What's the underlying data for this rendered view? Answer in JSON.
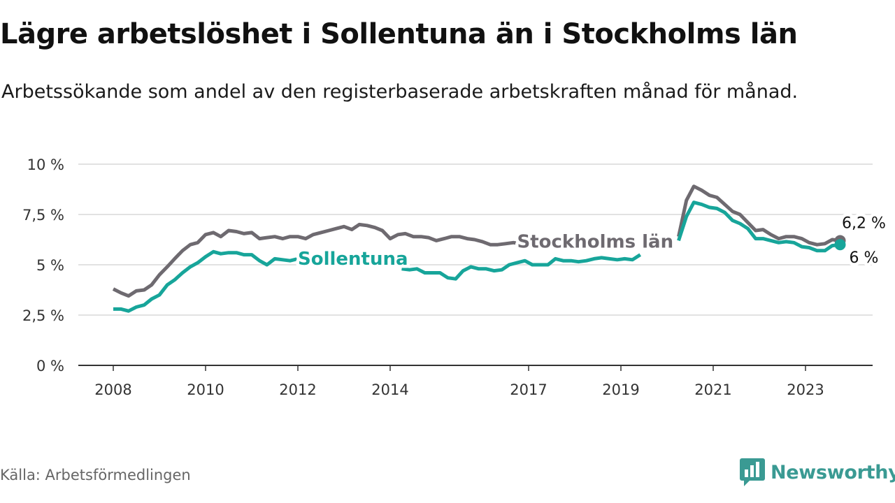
{
  "title": "Lägre arbetslöshet i Sollentuna än i Stockholms län",
  "subtitle": "Arbetssökande som andel av den registerbaserade arbetskraften månad för månad.",
  "source": "Källa: Arbetsförmedlingen",
  "brand": {
    "name": "Newsworthy",
    "icon": "newsworthy-logo-icon",
    "color": "#3a9a93"
  },
  "chart_data": {
    "type": "line",
    "title": "Lägre arbetslöshet i Sollentuna än i Stockholms län",
    "xlabel": "",
    "ylabel": "",
    "ylim": [
      0,
      10
    ],
    "xlim": [
      2008.0,
      2024.6
    ],
    "yticks": [
      0,
      2.5,
      5,
      7.5,
      10
    ],
    "ytick_labels": [
      "0 %",
      "2,5 %",
      "5 %",
      "7,5 %",
      "10 %"
    ],
    "xticks": [
      2008,
      2010,
      2012,
      2014,
      2017,
      2019,
      2021,
      2023
    ],
    "xtick_labels": [
      "2008",
      "2010",
      "2012",
      "2014",
      "2017",
      "2019",
      "2021",
      "2023"
    ],
    "grid": true,
    "series": [
      {
        "name": "Stockholms län",
        "color": "#6e6a70",
        "label": "Stockholms län",
        "end_label": "6,2 %",
        "segments": [
          {
            "x": [
              2008.0,
              2008.17,
              2008.33,
              2008.5,
              2008.67,
              2008.83,
              2009.0,
              2009.17,
              2009.33,
              2009.5,
              2009.67,
              2009.83,
              2010.0,
              2010.17,
              2010.33,
              2010.5,
              2010.67,
              2010.83,
              2011.0,
              2011.17,
              2011.33,
              2011.5,
              2011.67,
              2011.83,
              2012.0,
              2012.17,
              2012.33,
              2012.5,
              2012.67,
              2012.83,
              2013.0,
              2013.17,
              2013.33,
              2013.5,
              2013.67,
              2013.83,
              2014.0,
              2014.17,
              2014.33,
              2014.5,
              2014.67,
              2014.83,
              2015.0,
              2015.17,
              2015.33,
              2015.5,
              2015.67,
              2015.83,
              2016.0,
              2016.17,
              2016.33,
              2016.5,
              2016.67,
              2016.83
            ],
            "y": [
              3.8,
              3.6,
              3.45,
              3.7,
              3.75,
              4.0,
              4.5,
              4.9,
              5.3,
              5.7,
              6.0,
              6.1,
              6.5,
              6.6,
              6.4,
              6.7,
              6.65,
              6.55,
              6.6,
              6.3,
              6.35,
              6.4,
              6.3,
              6.4,
              6.4,
              6.3,
              6.5,
              6.6,
              6.7,
              6.8,
              6.9,
              6.75,
              7.0,
              6.95,
              6.85,
              6.7,
              6.3,
              6.5,
              6.55,
              6.4,
              6.4,
              6.35,
              6.2,
              6.3,
              6.4,
              6.4,
              6.3,
              6.25,
              6.15,
              6.0,
              6.0,
              6.05,
              6.1,
              6.05
            ]
          },
          {
            "x": [
              2020.25,
              2020.42,
              2020.58,
              2020.75,
              2020.92,
              2021.08,
              2021.25,
              2021.42,
              2021.58,
              2021.75,
              2021.92,
              2022.08,
              2022.25,
              2022.42,
              2022.58,
              2022.75,
              2022.92,
              2023.08,
              2023.25,
              2023.42,
              2023.58,
              2023.75
            ],
            "y": [
              6.4,
              8.2,
              8.9,
              8.7,
              8.45,
              8.35,
              8.0,
              7.65,
              7.5,
              7.1,
              6.7,
              6.75,
              6.5,
              6.3,
              6.4,
              6.4,
              6.3,
              6.1,
              6.0,
              6.05,
              6.25,
              6.2
            ]
          }
        ]
      },
      {
        "name": "Sollentuna",
        "color": "#17a59a",
        "label": "Sollentuna",
        "end_label": "6 %",
        "segments": [
          {
            "x": [
              2008.0,
              2008.17,
              2008.33,
              2008.5,
              2008.67,
              2008.83,
              2009.0,
              2009.17,
              2009.33,
              2009.5,
              2009.67,
              2009.83,
              2010.0,
              2010.17,
              2010.33,
              2010.5,
              2010.67,
              2010.83,
              2011.0,
              2011.17,
              2011.33,
              2011.5,
              2011.67,
              2011.83,
              2012.0
            ],
            "y": [
              2.8,
              2.8,
              2.7,
              2.9,
              3.0,
              3.3,
              3.5,
              4.0,
              4.25,
              4.6,
              4.9,
              5.1,
              5.4,
              5.65,
              5.55,
              5.6,
              5.6,
              5.5,
              5.5,
              5.2,
              5.0,
              5.3,
              5.25,
              5.2,
              5.3
            ]
          },
          {
            "x": [
              2014.25,
              2014.42,
              2014.58,
              2014.75,
              2014.92,
              2015.08,
              2015.25,
              2015.42,
              2015.58,
              2015.75,
              2015.92,
              2016.08,
              2016.25,
              2016.42,
              2016.58,
              2016.75,
              2016.92,
              2017.08,
              2017.25,
              2017.42,
              2017.58,
              2017.75,
              2017.92,
              2018.08,
              2018.25,
              2018.42,
              2018.58,
              2018.75,
              2018.92,
              2019.08,
              2019.25,
              2019.42
            ],
            "y": [
              4.8,
              4.75,
              4.8,
              4.6,
              4.6,
              4.6,
              4.35,
              4.3,
              4.7,
              4.9,
              4.8,
              4.8,
              4.7,
              4.75,
              5.0,
              5.1,
              5.2,
              5.0,
              5.0,
              5.0,
              5.3,
              5.2,
              5.2,
              5.15,
              5.2,
              5.3,
              5.35,
              5.3,
              5.25,
              5.3,
              5.25,
              5.5
            ]
          },
          {
            "x": [
              2020.25,
              2020.42,
              2020.58,
              2020.75,
              2020.92,
              2021.08,
              2021.25,
              2021.42,
              2021.58,
              2021.75,
              2021.92,
              2022.08,
              2022.25,
              2022.42,
              2022.58,
              2022.75,
              2022.92,
              2023.08,
              2023.25,
              2023.42,
              2023.58,
              2023.75
            ],
            "y": [
              6.2,
              7.4,
              8.1,
              8.0,
              7.85,
              7.8,
              7.6,
              7.2,
              7.05,
              6.8,
              6.3,
              6.3,
              6.2,
              6.1,
              6.15,
              6.1,
              5.9,
              5.85,
              5.7,
              5.7,
              5.95,
              6.0
            ]
          }
        ]
      }
    ]
  }
}
